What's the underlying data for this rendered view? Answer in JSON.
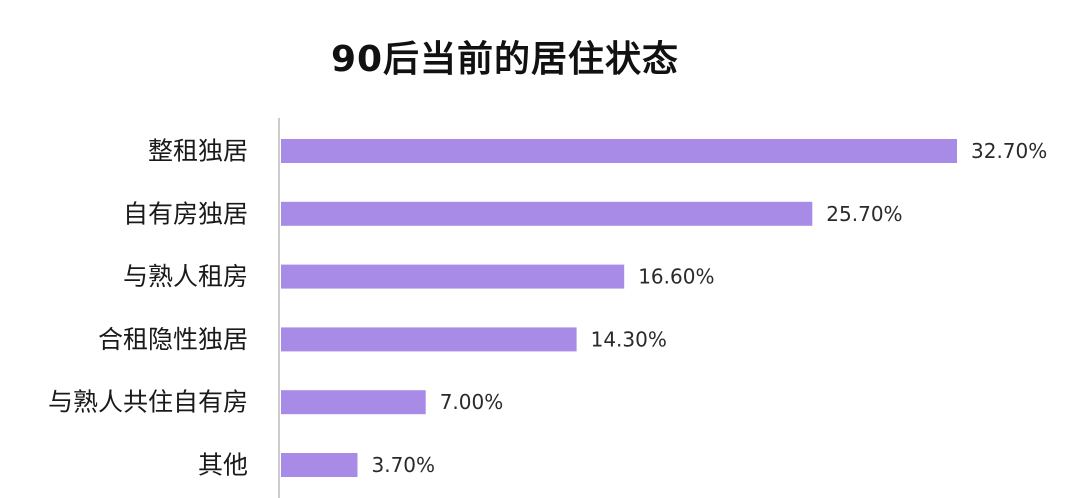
{
  "chart_data": {
    "type": "bar",
    "orientation": "horizontal",
    "title": "90后当前的居住状态",
    "categories": [
      "整租独居",
      "自有房独居",
      "与熟人租房",
      "合租隐性独居",
      "与熟人共住自有房",
      "其他"
    ],
    "values": [
      32.7,
      25.7,
      16.6,
      14.3,
      7.0,
      3.7
    ],
    "value_labels": [
      "32.70%",
      "25.70%",
      "16.60%",
      "14.30%",
      "7.00%",
      "3.70%"
    ],
    "unit": "%",
    "xlim": [
      0,
      32.7
    ],
    "grid": false,
    "legend": "none",
    "bar_color": "#a88be6",
    "axis_color": "#cccccc"
  }
}
